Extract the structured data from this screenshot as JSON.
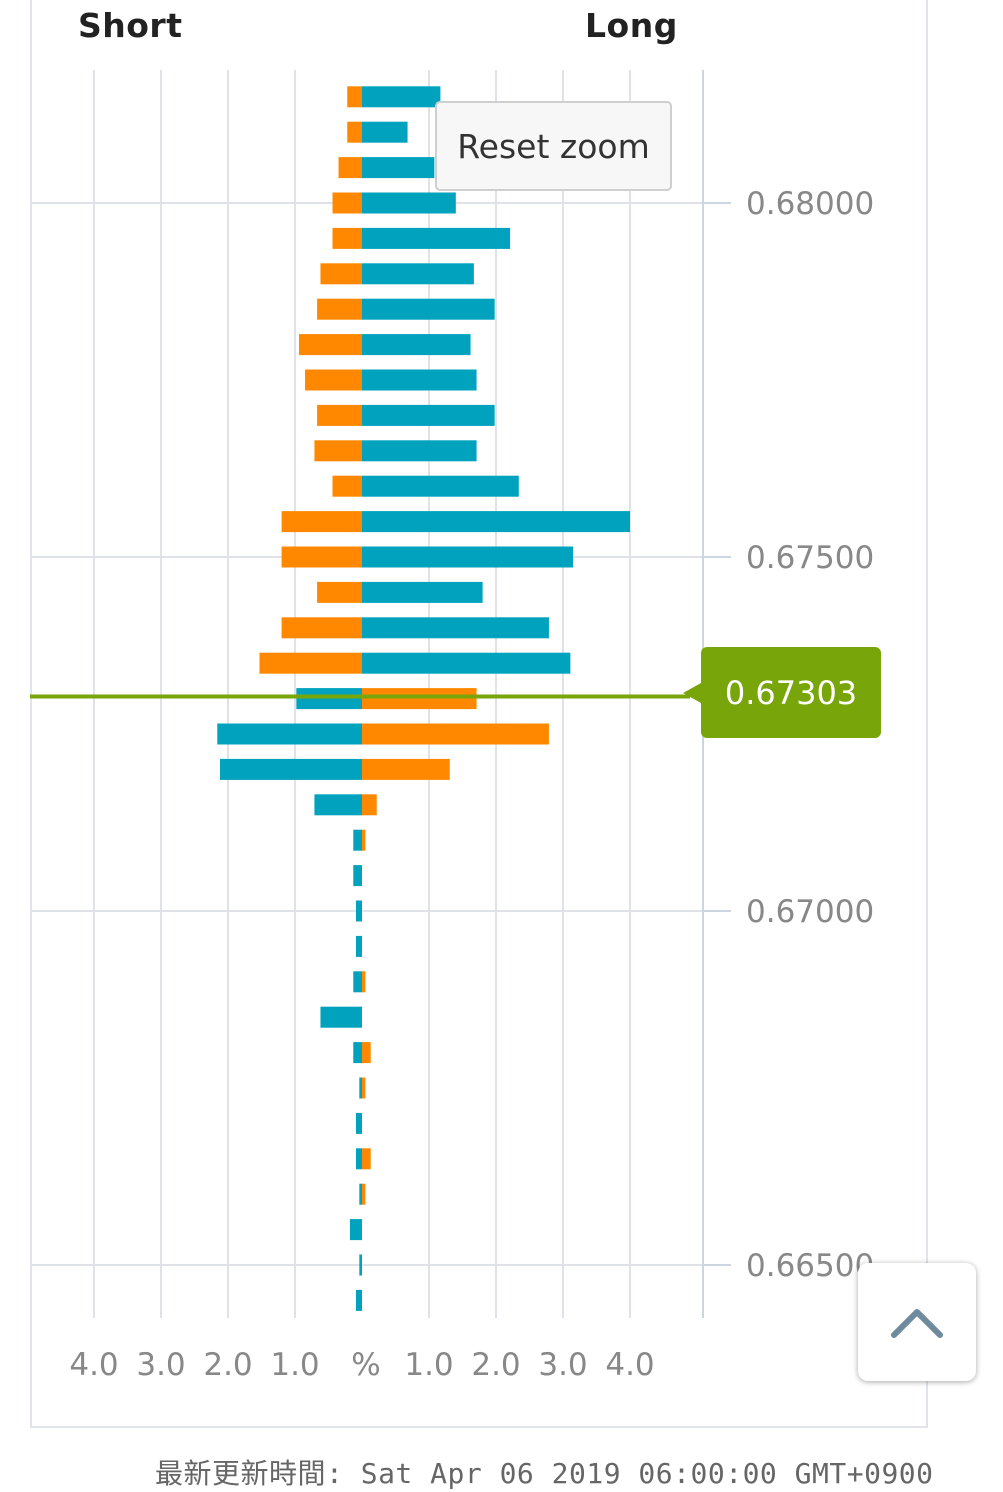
{
  "header": {
    "short_label": "Short",
    "long_label": "Long"
  },
  "reset_zoom_label": "Reset zoom",
  "current_price": "0.67303",
  "footer": {
    "last_updated": "最新更新時間: Sat Apr 06 2019 06:00:00 GMT+0900"
  },
  "colors": {
    "orange": "#ff8800",
    "teal": "#00a2bd",
    "price_line": "#78a60a",
    "grid": "#dfe3e8"
  },
  "chart_data": {
    "type": "bar",
    "orientation": "horizontal-diverging",
    "x_tick_labels": [
      "4.0",
      "3.0",
      "2.0",
      "1.0",
      "%",
      "1.0",
      "2.0",
      "3.0",
      "4.0"
    ],
    "x_tick_values": [
      -4,
      -3,
      -2,
      -1,
      0,
      1,
      2,
      3,
      4
    ],
    "xlim": [
      -5.0,
      5.1
    ],
    "ylim": [
      0.6642,
      0.6818
    ],
    "y_tick_values": [
      0.68,
      0.675,
      0.67,
      0.665
    ],
    "y_tick_labels": [
      "0.68000",
      "0.67500",
      "0.67000",
      "0.66500"
    ],
    "current_price_value": 0.67303,
    "bars": [
      {
        "price": 0.6815,
        "orange": -0.22,
        "teal": 1.17
      },
      {
        "price": 0.681,
        "orange": -0.22,
        "teal": 0.68
      },
      {
        "price": 0.6805,
        "orange": -0.35,
        "teal": 1.08
      },
      {
        "price": 0.68,
        "orange": -0.44,
        "teal": 1.4
      },
      {
        "price": 0.6795,
        "orange": -0.44,
        "teal": 2.21
      },
      {
        "price": 0.679,
        "orange": -0.62,
        "teal": 1.67
      },
      {
        "price": 0.6785,
        "orange": -0.67,
        "teal": 1.98
      },
      {
        "price": 0.678,
        "orange": -0.94,
        "teal": 1.62
      },
      {
        "price": 0.6775,
        "orange": -0.85,
        "teal": 1.71
      },
      {
        "price": 0.677,
        "orange": -0.67,
        "teal": 1.98
      },
      {
        "price": 0.6765,
        "orange": -0.71,
        "teal": 1.71
      },
      {
        "price": 0.676,
        "orange": -0.44,
        "teal": 2.34
      },
      {
        "price": 0.6755,
        "orange": -1.2,
        "teal": 4.0
      },
      {
        "price": 0.675,
        "orange": -1.2,
        "teal": 3.15
      },
      {
        "price": 0.6745,
        "orange": -0.67,
        "teal": 1.8
      },
      {
        "price": 0.674,
        "orange": -1.2,
        "teal": 2.79
      },
      {
        "price": 0.6735,
        "orange": -1.53,
        "teal": 3.11
      },
      {
        "price": 0.673,
        "orange": 1.71,
        "teal": -0.98
      },
      {
        "price": 0.6725,
        "orange": 2.79,
        "teal": -2.16
      },
      {
        "price": 0.672,
        "orange": 1.31,
        "teal": -2.12
      },
      {
        "price": 0.6715,
        "orange": 0.22,
        "teal": -0.71
      },
      {
        "price": 0.671,
        "orange": 0.05,
        "teal": -0.13
      },
      {
        "price": 0.6705,
        "orange": 0.0,
        "teal": -0.13
      },
      {
        "price": 0.67,
        "orange": 0.0,
        "teal": -0.09
      },
      {
        "price": 0.6695,
        "orange": 0.0,
        "teal": -0.09
      },
      {
        "price": 0.669,
        "orange": 0.05,
        "teal": -0.13
      },
      {
        "price": 0.6685,
        "orange": 0.0,
        "teal": -0.62
      },
      {
        "price": 0.668,
        "orange": 0.13,
        "teal": -0.13
      },
      {
        "price": 0.6675,
        "orange": 0.05,
        "teal": -0.04
      },
      {
        "price": 0.667,
        "orange": 0.0,
        "teal": -0.09
      },
      {
        "price": 0.6665,
        "orange": 0.13,
        "teal": -0.09
      },
      {
        "price": 0.666,
        "orange": 0.05,
        "teal": -0.04
      },
      {
        "price": 0.6655,
        "orange": 0.0,
        "teal": -0.18
      },
      {
        "price": 0.665,
        "orange": 0.0,
        "teal": -0.04
      },
      {
        "price": 0.6645,
        "orange": 0.0,
        "teal": -0.09
      }
    ]
  }
}
